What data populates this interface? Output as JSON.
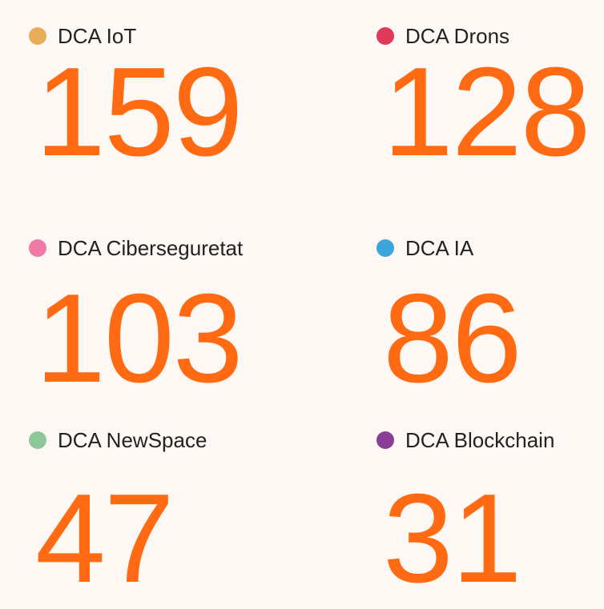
{
  "items": [
    {
      "label": "DCA IoT",
      "value": "159",
      "color": "#e8ad5a"
    },
    {
      "label": "DCA Drons",
      "value": "128",
      "color": "#e0395a"
    },
    {
      "label": "DCA Ciberseguretat",
      "value": "103",
      "color": "#ef7aa6"
    },
    {
      "label": "DCA IA",
      "value": "86",
      "color": "#3aa6dc"
    },
    {
      "label": "DCA NewSpace",
      "value": "47",
      "color": "#8dc79a"
    },
    {
      "label": "DCA Blockchain",
      "value": "31",
      "color": "#8a3d94"
    }
  ]
}
